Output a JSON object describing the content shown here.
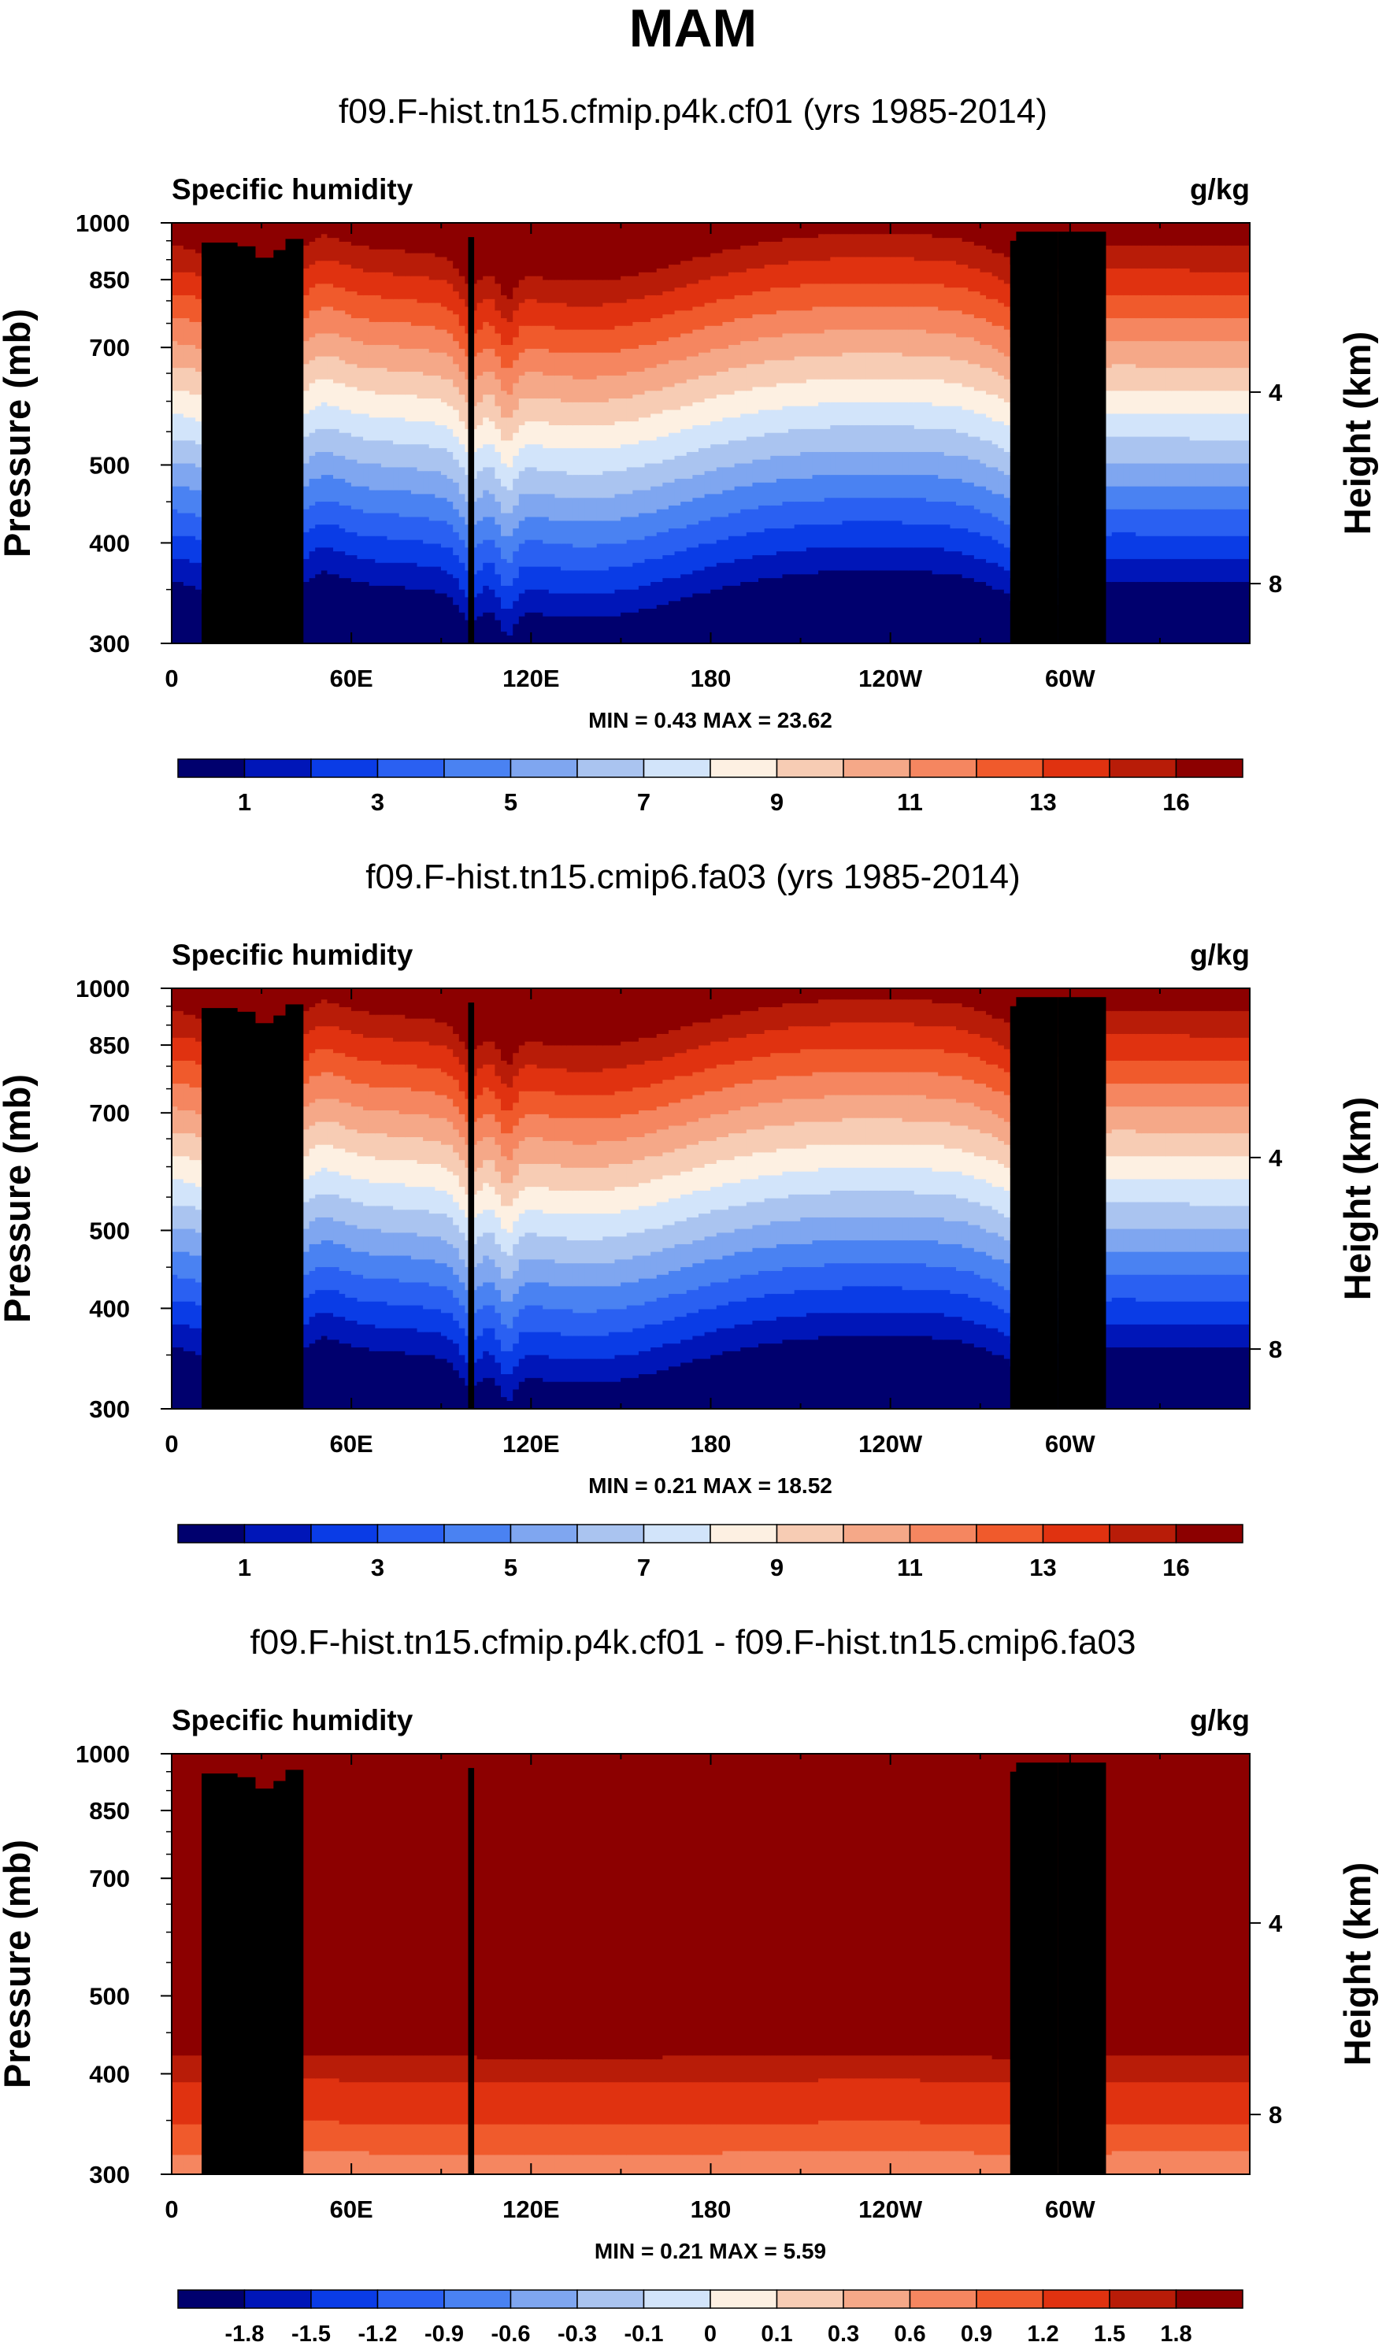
{
  "figure_title": "MAM",
  "colors": {
    "blue_red_scale": [
      "#00006e",
      "#0016b8",
      "#0a3ce6",
      "#2a60f2",
      "#4a82f2",
      "#7fa6f0",
      "#aac4f0",
      "#d2e4fa",
      "#fdf0e2",
      "#f7ccb4",
      "#f5a888",
      "#f58660",
      "#f05a2c",
      "#e03210",
      "#b81c08",
      "#8c0000"
    ],
    "terrain": "#000000"
  },
  "chart_data": [
    {
      "type": "heatmap",
      "title": "f09.F-hist.tn15.cfmip.p4k.cf01 (yrs 1985-2014)",
      "left_label": "Specific humidity",
      "right_label": "g/kg",
      "ylabel": "Pressure (mb)",
      "ylabel_right": "Height (km)",
      "yticks": [
        "300",
        "400",
        "500",
        "700",
        "850",
        "1000"
      ],
      "y_pressure": [
        300,
        400,
        500,
        700,
        850,
        1000
      ],
      "yticks_right": [
        "8",
        "4"
      ],
      "xticks": [
        "0",
        "60E",
        "120E",
        "180",
        "120W",
        "60W"
      ],
      "x_lon": [
        0,
        60,
        120,
        180,
        240,
        300
      ],
      "xlim": [
        0,
        360
      ],
      "ylim": [
        1000,
        300
      ],
      "stats": "MIN =   0.43   MAX =  23.62",
      "levels": [
        "1",
        "3",
        "5",
        "7",
        "9",
        "11",
        "13",
        "16"
      ],
      "field_params": {
        "surface": 23.6,
        "top": 0.43,
        "orog_boost": 1.0
      },
      "kind": "abs"
    },
    {
      "type": "heatmap",
      "title": "f09.F-hist.tn15.cmip6.fa03 (yrs 1985-2014)",
      "left_label": "Specific humidity",
      "right_label": "g/kg",
      "ylabel": "Pressure (mb)",
      "ylabel_right": "Height (km)",
      "yticks": [
        "300",
        "400",
        "500",
        "700",
        "850",
        "1000"
      ],
      "y_pressure": [
        300,
        400,
        500,
        700,
        850,
        1000
      ],
      "yticks_right": [
        "8",
        "4"
      ],
      "xticks": [
        "0",
        "60E",
        "120E",
        "180",
        "120W",
        "60W"
      ],
      "x_lon": [
        0,
        60,
        120,
        180,
        240,
        300
      ],
      "xlim": [
        0,
        360
      ],
      "ylim": [
        1000,
        300
      ],
      "stats": "MIN =   0.21   MAX =  18.52",
      "levels": [
        "1",
        "3",
        "5",
        "7",
        "9",
        "11",
        "13",
        "16"
      ],
      "field_params": {
        "surface": 18.5,
        "top": 0.21,
        "orog_boost": 1.0
      },
      "kind": "abs"
    },
    {
      "type": "heatmap",
      "title": "f09.F-hist.tn15.cfmip.p4k.cf01 - f09.F-hist.tn15.cmip6.fa03",
      "left_label": "Specific humidity",
      "right_label": "g/kg",
      "ylabel": "Pressure (mb)",
      "ylabel_right": "Height (km)",
      "yticks": [
        "300",
        "400",
        "500",
        "700",
        "850",
        "1000"
      ],
      "y_pressure": [
        300,
        400,
        500,
        700,
        850,
        1000
      ],
      "yticks_right": [
        "8",
        "4"
      ],
      "xticks": [
        "0",
        "60E",
        "120E",
        "180",
        "120W",
        "60W"
      ],
      "x_lon": [
        0,
        60,
        120,
        180,
        240,
        300
      ],
      "xlim": [
        0,
        360
      ],
      "ylim": [
        1000,
        300
      ],
      "stats": "MIN =   0.21   MAX =   5.59",
      "levels": [
        "-1.8",
        "-1.5",
        "-1.2",
        "-0.9",
        "-0.6",
        "-0.3",
        "-0.1",
        "0",
        "0.1",
        "0.3",
        "0.6",
        "0.9",
        "1.2",
        "1.5",
        "1.8"
      ],
      "field_params": {
        "surface": 5.59,
        "top": 0.21,
        "orog_boost": 0.0
      },
      "kind": "diff"
    }
  ]
}
